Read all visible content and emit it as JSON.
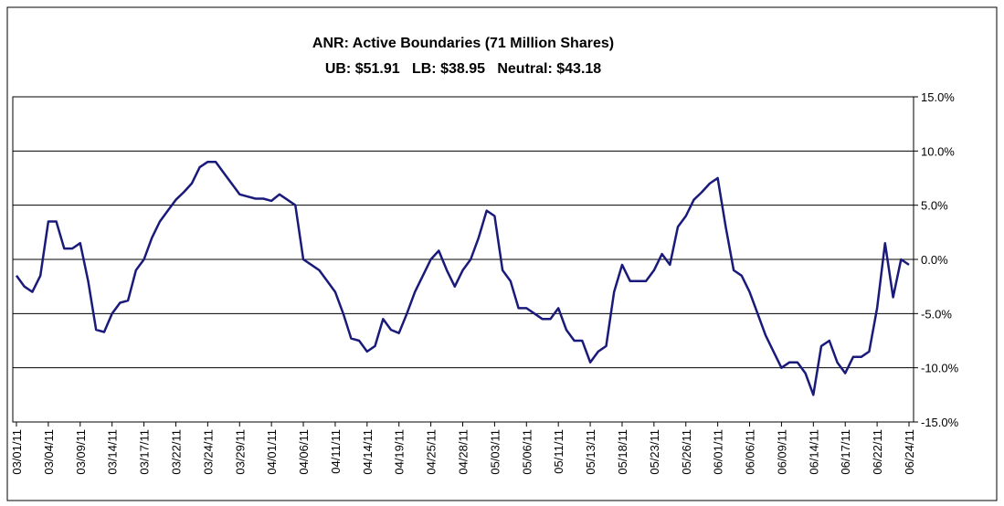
{
  "chart_data": {
    "type": "line",
    "title": "ANR: Active Boundaries (71 Million Shares)",
    "subtitle": "UB: $51.91   LB: $38.95   Neutral: $43.18",
    "categories": [
      "03/01/11",
      null,
      null,
      null,
      "03/04/11",
      null,
      null,
      null,
      "03/09/11",
      null,
      null,
      null,
      "03/14/11",
      null,
      null,
      null,
      "03/17/11",
      null,
      null,
      null,
      "03/22/11",
      null,
      null,
      null,
      "03/24/11",
      null,
      null,
      null,
      "03/29/11",
      null,
      null,
      null,
      "04/01/11",
      null,
      null,
      null,
      "04/06/11",
      null,
      null,
      null,
      "04/11/11",
      null,
      null,
      null,
      "04/14/11",
      null,
      null,
      null,
      "04/19/11",
      null,
      null,
      null,
      "04/25/11",
      null,
      null,
      null,
      "04/28/11",
      null,
      null,
      null,
      "05/03/11",
      null,
      null,
      null,
      "05/06/11",
      null,
      null,
      null,
      "05/11/11",
      null,
      null,
      null,
      "05/13/11",
      null,
      null,
      null,
      "05/18/11",
      null,
      null,
      null,
      "05/23/11",
      null,
      null,
      null,
      "05/26/11",
      null,
      null,
      null,
      "06/01/11",
      null,
      null,
      null,
      "06/06/11",
      null,
      null,
      null,
      "06/09/11",
      null,
      null,
      null,
      "06/14/11",
      null,
      null,
      null,
      "06/17/11",
      null,
      null,
      null,
      "06/22/11",
      null,
      null,
      null,
      "06/24/11"
    ],
    "series": [
      {
        "color": "#1a1a7a",
        "values": [
          -1.5,
          -2.5,
          -3,
          -1.5,
          3.5,
          3.5,
          1,
          1,
          1.5,
          -2,
          -6.5,
          -6.7,
          -5,
          -4,
          -3.8,
          -1,
          0,
          2,
          3.5,
          4.5,
          5.5,
          6.2,
          7,
          8.5,
          9,
          9,
          8,
          7,
          6,
          5.8,
          5.6,
          5.6,
          5.4,
          6,
          5.5,
          5,
          0,
          -0.5,
          -1,
          -2,
          -3,
          -5,
          -7.3,
          -7.5,
          -8.5,
          -8,
          -5.5,
          -6.5,
          -6.8,
          -5,
          -3,
          -1.5,
          0,
          0.8,
          -1,
          -2.5,
          -1,
          0,
          2,
          4.5,
          4,
          -1,
          -2,
          -4.5,
          -4.5,
          -5,
          -5.5,
          -5.5,
          -4.5,
          -6.5,
          -7.5,
          -7.5,
          -9.5,
          -8.5,
          -8,
          -3,
          -0.5,
          -2,
          -2,
          -2,
          -1,
          0.5,
          -0.5,
          3,
          4,
          5.5,
          6.2,
          7,
          7.5,
          3,
          -1,
          -1.5,
          -3,
          -5,
          -7,
          -8.5,
          -10,
          -9.5,
          -9.5,
          -10.5,
          -12.5,
          -8,
          -7.5,
          -9.5,
          -10.5,
          -9,
          -9,
          -8.5,
          -4.5,
          1.5,
          -3.5,
          0,
          -0.5
        ]
      }
    ],
    "ylim": [
      -15,
      15
    ],
    "yticks": [
      {
        "value": -15,
        "label": "-15.0%"
      },
      {
        "value": -10,
        "label": "-10.0%"
      },
      {
        "value": -5,
        "label": "-5.0%"
      },
      {
        "value": 0,
        "label": "0.0%"
      },
      {
        "value": 5,
        "label": "5.0%"
      },
      {
        "value": 10,
        "label": "10.0%"
      },
      {
        "value": 15,
        "label": "15.0%"
      }
    ],
    "grid": true
  }
}
